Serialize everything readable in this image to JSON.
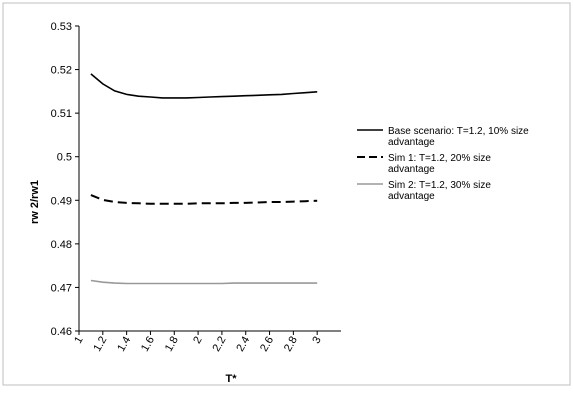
{
  "chart_data": {
    "type": "line",
    "title": "",
    "xlabel": "T*",
    "ylabel": "rw 2/rw1",
    "x": [
      1.1,
      1.2,
      1.3,
      1.4,
      1.5,
      1.6,
      1.7,
      1.8,
      1.9,
      2.0,
      2.1,
      2.2,
      2.3,
      2.4,
      2.5,
      2.6,
      2.7,
      2.8,
      2.9,
      3.0
    ],
    "xlim": [
      1,
      3.2
    ],
    "xticks": [
      "1",
      "1.2",
      "1.4",
      "1.6",
      "1.8",
      "2",
      "2.2",
      "2.4",
      "2.6",
      "2.8",
      "3"
    ],
    "ylim": [
      0.46,
      0.53
    ],
    "yticks": [
      "0.46",
      "0.47",
      "0.48",
      "0.49",
      "0.5",
      "0.51",
      "0.52",
      "0.53"
    ],
    "grid": false,
    "legend_position": "right",
    "series": [
      {
        "name": "Base scenario: T=1.2, 10% size advantage",
        "legend_lines": [
          "Base scenario: T=1.2, 10% size",
          "advantage"
        ],
        "style": "solid",
        "color": "#000000",
        "values": [
          0.519,
          0.5167,
          0.5151,
          0.5143,
          0.5139,
          0.5137,
          0.5135,
          0.5135,
          0.5135,
          0.5136,
          0.5137,
          0.5138,
          0.5139,
          0.514,
          0.5141,
          0.5142,
          0.5143,
          0.5145,
          0.5147,
          0.5149
        ]
      },
      {
        "name": "Sim 1: T=1.2, 20% size advantage",
        "legend_lines": [
          "Sim 1: T=1.2, 20% size",
          "advantage"
        ],
        "style": "dashed",
        "color": "#000000",
        "values": [
          0.4912,
          0.4901,
          0.4896,
          0.4894,
          0.4893,
          0.4892,
          0.4892,
          0.4892,
          0.4892,
          0.4893,
          0.4893,
          0.4893,
          0.4894,
          0.4894,
          0.4895,
          0.4896,
          0.4896,
          0.4897,
          0.4898,
          0.4899
        ]
      },
      {
        "name": "Sim 2: T=1.2, 30% size advantage",
        "legend_lines": [
          "Sim 2: T=1.2, 30% size",
          "advantage"
        ],
        "style": "solid",
        "color": "#999999",
        "values": [
          0.4716,
          0.4712,
          0.471,
          0.4709,
          0.4709,
          0.4709,
          0.4709,
          0.4709,
          0.4709,
          0.4709,
          0.4709,
          0.4709,
          0.471,
          0.471,
          0.471,
          0.471,
          0.471,
          0.471,
          0.471,
          0.471
        ]
      }
    ]
  }
}
